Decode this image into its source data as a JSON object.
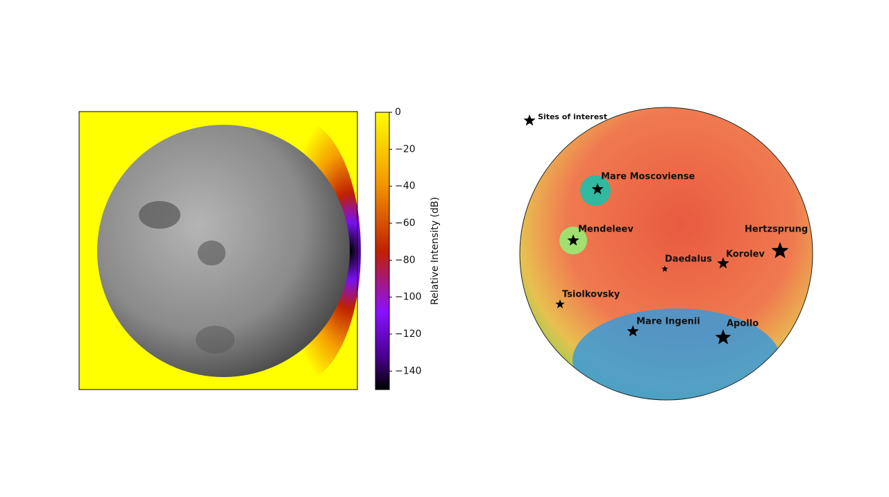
{
  "colorbar": {
    "label": "Relative Intensity (dB)",
    "lim": [
      -150,
      0
    ],
    "ticks": [
      0,
      {
        "value": -20,
        "label": "−20"
      },
      {
        "value": -40,
        "label": "−40"
      },
      {
        "value": -60,
        "label": "−60"
      },
      {
        "value": -80,
        "label": "−80"
      },
      {
        "value": -100,
        "label": "−100"
      },
      {
        "value": -120,
        "label": "−120"
      },
      {
        "value": -140,
        "label": "−140"
      }
    ]
  },
  "legend": {
    "label": "Sites of interest"
  },
  "sites": [
    "Mare Moscoviense",
    "Mendeleev",
    "Hertzsprung",
    "Korolev",
    "Daedalus",
    "Tsiolkovsky",
    "Mare Ingenii",
    "Apollo"
  ]
}
